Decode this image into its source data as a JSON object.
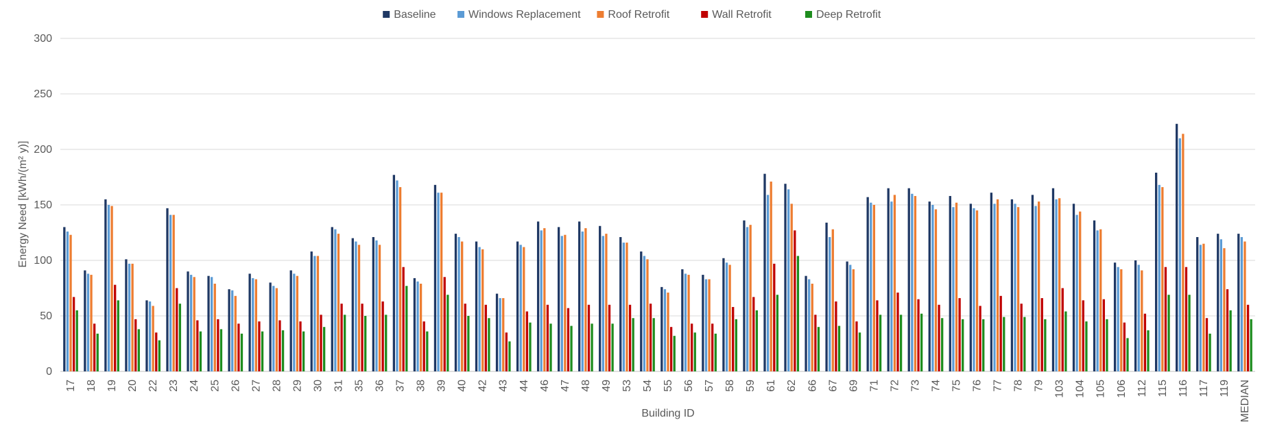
{
  "chart_data": {
    "type": "bar",
    "title": "",
    "xlabel": "Building ID",
    "ylabel": "Energy Need [kWh/(m² y)]",
    "ylim": [
      0,
      300
    ],
    "yticks": [
      0,
      50,
      100,
      150,
      200,
      250,
      300
    ],
    "grid": "horizontal",
    "legend_position": "top",
    "categories": [
      "17",
      "18",
      "19",
      "20",
      "22",
      "23",
      "24",
      "25",
      "26",
      "27",
      "28",
      "29",
      "30",
      "31",
      "35",
      "36",
      "37",
      "38",
      "39",
      "40",
      "42",
      "43",
      "44",
      "46",
      "47",
      "48",
      "49",
      "53",
      "54",
      "55",
      "56",
      "57",
      "58",
      "59",
      "61",
      "62",
      "66",
      "67",
      "69",
      "71",
      "72",
      "73",
      "74",
      "75",
      "76",
      "77",
      "78",
      "79",
      "103",
      "104",
      "105",
      "106",
      "112",
      "115",
      "116",
      "117",
      "119",
      "MEDIAN"
    ],
    "series": [
      {
        "name": "Baseline",
        "color": "#1f3864",
        "values": [
          130,
          91,
          155,
          101,
          64,
          147,
          90,
          86,
          74,
          88,
          80,
          91,
          108,
          130,
          120,
          121,
          177,
          84,
          168,
          124,
          117,
          70,
          117,
          135,
          130,
          135,
          131,
          121,
          108,
          76,
          92,
          87,
          102,
          136,
          178,
          169,
          86,
          134,
          99,
          157,
          165,
          165,
          153,
          158,
          151,
          161,
          155,
          159,
          165,
          151,
          136,
          98,
          100,
          179,
          223,
          121,
          124,
          124
        ]
      },
      {
        "name": "Windows Replacement",
        "color": "#5b9bd5",
        "values": [
          126,
          88,
          150,
          97,
          63,
          141,
          87,
          85,
          73,
          84,
          77,
          88,
          104,
          128,
          117,
          118,
          172,
          81,
          161,
          121,
          112,
          66,
          114,
          127,
          122,
          126,
          122,
          116,
          104,
          74,
          88,
          83,
          98,
          130,
          159,
          164,
          83,
          121,
          96,
          152,
          153,
          160,
          150,
          148,
          147,
          151,
          151,
          149,
          155,
          141,
          127,
          94,
          96,
          168,
          210,
          114,
          119,
          121
        ]
      },
      {
        "name": "Roof Retrofit",
        "color": "#ed7d31",
        "values": [
          123,
          87,
          149,
          97,
          59,
          141,
          85,
          79,
          68,
          83,
          75,
          86,
          104,
          124,
          114,
          114,
          166,
          79,
          161,
          117,
          110,
          66,
          112,
          129,
          123,
          129,
          124,
          116,
          101,
          71,
          87,
          83,
          96,
          132,
          171,
          151,
          79,
          128,
          92,
          150,
          159,
          158,
          146,
          152,
          145,
          155,
          148,
          153,
          156,
          144,
          128,
          92,
          91,
          166,
          214,
          115,
          111,
          117
        ]
      },
      {
        "name": "Wall Retrofit",
        "color": "#c00000",
        "values": [
          67,
          43,
          78,
          47,
          35,
          75,
          46,
          47,
          43,
          45,
          46,
          45,
          51,
          61,
          61,
          63,
          94,
          45,
          85,
          61,
          60,
          35,
          54,
          60,
          57,
          60,
          60,
          60,
          61,
          40,
          43,
          43,
          58,
          67,
          97,
          127,
          51,
          63,
          45,
          64,
          71,
          65,
          60,
          66,
          59,
          68,
          61,
          66,
          75,
          64,
          65,
          44,
          52,
          94,
          94,
          48,
          74,
          60
        ]
      },
      {
        "name": "Deep Retrofit",
        "color": "#1e8c1e",
        "values": [
          55,
          34,
          64,
          38,
          28,
          61,
          36,
          38,
          34,
          36,
          37,
          36,
          40,
          51,
          50,
          51,
          77,
          36,
          69,
          50,
          48,
          27,
          44,
          43,
          41,
          43,
          43,
          48,
          48,
          32,
          35,
          34,
          47,
          55,
          69,
          104,
          40,
          41,
          35,
          51,
          51,
          52,
          48,
          47,
          47,
          49,
          49,
          47,
          54,
          45,
          47,
          30,
          37,
          69,
          69,
          34,
          55,
          47
        ]
      }
    ]
  }
}
